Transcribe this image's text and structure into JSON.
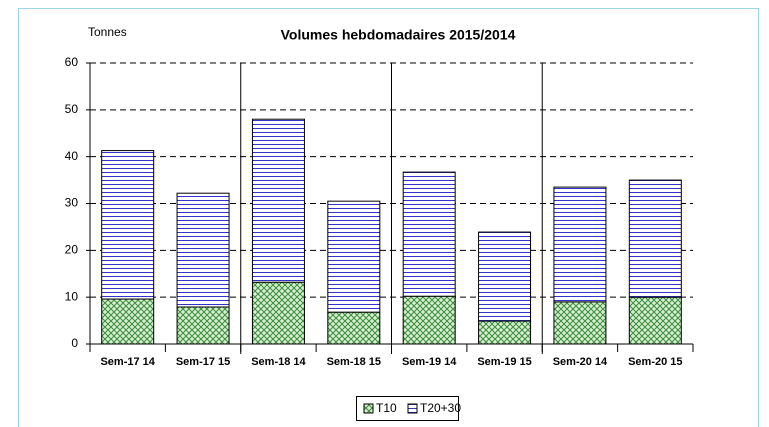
{
  "chart_data": {
    "type": "stacked_bar",
    "title": "Volumes hebdomadaires 2015/2014",
    "y_label": "Tonnes",
    "categories": [
      "Sem-17 14",
      "Sem-17 15",
      "Sem-18 14",
      "Sem-18 15",
      "Sem-19 14",
      "Sem-19 15",
      "Sem-20 14",
      "Sem-20 15"
    ],
    "series": [
      {
        "name": "T10",
        "color": "#3c8c3c",
        "values": [
          9.6,
          7.9,
          13.2,
          6.8,
          10.2,
          4.9,
          9.0,
          10.0
        ]
      },
      {
        "name": "T20+30",
        "color": "#3333cc",
        "values": [
          31.7,
          24.3,
          34.8,
          23.7,
          26.5,
          19.0,
          24.5,
          25.0
        ]
      }
    ],
    "ylim": [
      0,
      60
    ],
    "yticks": [
      0,
      10,
      20,
      30,
      40,
      50,
      60
    ],
    "grid": true,
    "legend": "bottom"
  }
}
